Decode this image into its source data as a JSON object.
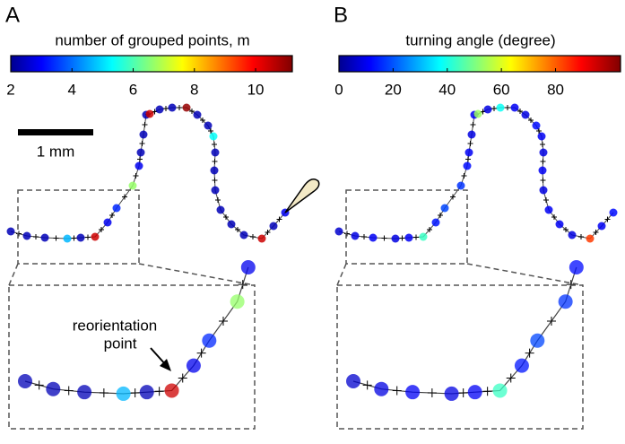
{
  "panels": [
    {
      "label": "A",
      "colorbar": {
        "title": "number of grouped points, m",
        "lim": [
          2,
          11.2
        ],
        "ticks": [
          2,
          4,
          6,
          8,
          10
        ]
      },
      "points": [
        2.5,
        2.5,
        2.5,
        4.8,
        2.5,
        10.5,
        3,
        3.5,
        6.8,
        3,
        2.5,
        2.5,
        2.5,
        10.5,
        2.5,
        2.5,
        11,
        2.5,
        2.5,
        5.5,
        2.5,
        2.5,
        2.5,
        2.5,
        2.5,
        2.5,
        10.5,
        2.5,
        3
      ],
      "scale_bar": "1 mm",
      "annotation": [
        "reorientation",
        "point"
      ]
    },
    {
      "label": "B",
      "colorbar": {
        "title": "turning angle (degree)",
        "lim": [
          0,
          104
        ],
        "ticks": [
          0,
          20,
          40,
          60,
          80
        ]
      },
      "points": [
        8,
        10,
        12,
        10,
        12,
        45,
        15,
        20,
        18,
        14,
        12,
        10,
        12,
        55,
        10,
        40,
        12,
        10,
        14,
        12,
        10,
        12,
        10,
        12,
        12,
        10,
        85,
        12,
        14
      ]
    }
  ]
}
